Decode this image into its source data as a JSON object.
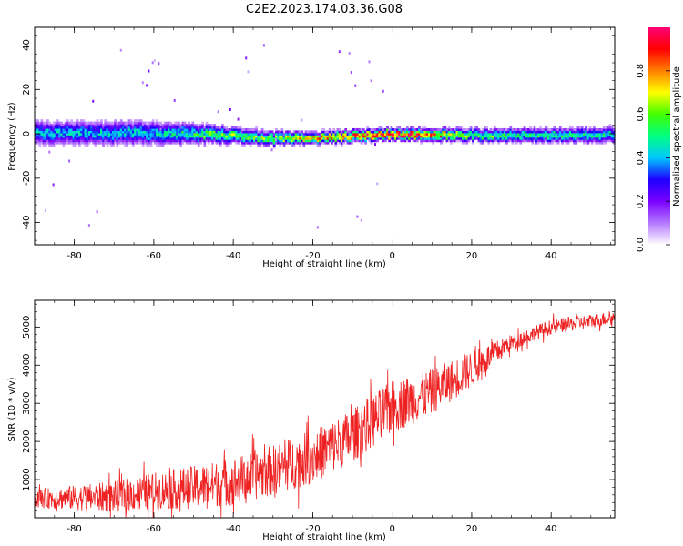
{
  "title": "C2E2.2023.174.03.36.G08",
  "chart_data": [
    {
      "type": "heatmap",
      "xlabel": "Height of straight line (km)",
      "ylabel": "Frequency (Hz)",
      "xlim": [
        -90,
        56
      ],
      "ylim": [
        -50,
        48
      ],
      "xticks": [
        -80,
        -60,
        -40,
        -20,
        0,
        20,
        40
      ],
      "yticks": [
        -40,
        -20,
        0,
        20,
        40
      ],
      "colorbar": {
        "label": "Normalized spectral amplitude",
        "range": [
          0,
          1
        ],
        "ticks": [
          "0.0",
          "0.2",
          "0.4",
          "0.6",
          "0.8"
        ],
        "colors": [
          "#ffffff",
          "#b478ff",
          "#7a00ff",
          "#1e00ff",
          "#00c8ff",
          "#00ff80",
          "#40ff00",
          "#ffff00",
          "#ff8000",
          "#ff0000",
          "#ff0078"
        ]
      },
      "band": {
        "center_freq_hz": [
          {
            "x": -90,
            "y": 0.5
          },
          {
            "x": -60,
            "y": 0.5
          },
          {
            "x": -40,
            "y": -0.5
          },
          {
            "x": -30,
            "y": -2.0
          },
          {
            "x": -20,
            "y": -1.5
          },
          {
            "x": -10,
            "y": -1.0
          },
          {
            "x": 0,
            "y": 0.0
          },
          {
            "x": 20,
            "y": -0.5
          },
          {
            "x": 56,
            "y": -0.5
          }
        ],
        "half_width_hz": [
          {
            "x": -90,
            "y": 6
          },
          {
            "x": -60,
            "y": 6
          },
          {
            "x": -40,
            "y": 4
          },
          {
            "x": -20,
            "y": 3
          },
          {
            "x": 0,
            "y": 3
          },
          {
            "x": 56,
            "y": 4
          }
        ],
        "peak_amplitude": [
          {
            "x": -90,
            "y": 0.4
          },
          {
            "x": -60,
            "y": 0.42
          },
          {
            "x": -45,
            "y": 0.55
          },
          {
            "x": -30,
            "y": 0.62
          },
          {
            "x": -10,
            "y": 0.85
          },
          {
            "x": 5,
            "y": 0.9
          },
          {
            "x": 20,
            "y": 0.55
          },
          {
            "x": 56,
            "y": 0.45
          }
        ]
      }
    },
    {
      "type": "line",
      "xlabel": "Height of straight line (km)",
      "ylabel": "SNR (10 * v/v)",
      "xlim": [
        -90,
        56
      ],
      "ylim": [
        0,
        5700
      ],
      "xticks": [
        -80,
        -60,
        -40,
        -20,
        0,
        20,
        40
      ],
      "yticks": [
        1000,
        2000,
        3000,
        4000,
        5000
      ],
      "line_color": "#ee2222",
      "series": [
        {
          "trend": [
            {
              "x": -90,
              "y": 500
            },
            {
              "x": -70,
              "y": 550
            },
            {
              "x": -60,
              "y": 700
            },
            {
              "x": -50,
              "y": 800
            },
            {
              "x": -40,
              "y": 950
            },
            {
              "x": -30,
              "y": 1250
            },
            {
              "x": -20,
              "y": 1600
            },
            {
              "x": -10,
              "y": 2150
            },
            {
              "x": 0,
              "y": 2900
            },
            {
              "x": 10,
              "y": 3300
            },
            {
              "x": 20,
              "y": 3900
            },
            {
              "x": 30,
              "y": 4600
            },
            {
              "x": 40,
              "y": 5000
            },
            {
              "x": 56,
              "y": 5250
            }
          ],
          "variability": [
            {
              "x": -90,
              "y": 350
            },
            {
              "x": -60,
              "y": 700
            },
            {
              "x": -40,
              "y": 900
            },
            {
              "x": -20,
              "y": 1000
            },
            {
              "x": 0,
              "y": 1000
            },
            {
              "x": 20,
              "y": 700
            },
            {
              "x": 30,
              "y": 300
            },
            {
              "x": 56,
              "y": 250
            }
          ]
        }
      ]
    }
  ]
}
